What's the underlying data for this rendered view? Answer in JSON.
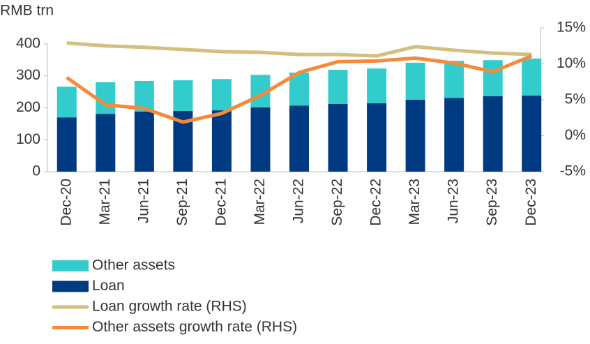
{
  "chart_data": {
    "type": "bar-line",
    "y_label": "RMB trn",
    "categories": [
      "Dec-20",
      "Mar-21",
      "Jun-21",
      "Sep-21",
      "Dec-21",
      "Mar-22",
      "Jun-22",
      "Sep-22",
      "Dec-22",
      "Mar-23",
      "Jun-23",
      "Sep-23",
      "Dec-23"
    ],
    "series": [
      {
        "name": "Other assets",
        "type": "bar",
        "color": "#33cccc",
        "values": [
          96,
          99,
          96,
          96,
          98,
          102,
          103,
          107,
          109,
          116,
          116,
          113,
          116
        ]
      },
      {
        "name": "Loan",
        "type": "bar",
        "color": "#003a80",
        "values": [
          170,
          181,
          188,
          190,
          192,
          201,
          207,
          212,
          214,
          225,
          231,
          236,
          238
        ]
      },
      {
        "name": "Loan growth rate (RHS)",
        "type": "line",
        "axis": "y2",
        "color": "#d4bf7e",
        "values": [
          12.9,
          12.5,
          12.3,
          12.0,
          11.7,
          11.6,
          11.3,
          11.3,
          11.1,
          12.4,
          11.9,
          11.5,
          11.3
        ]
      },
      {
        "name": "Other assets growth rate (RHS)",
        "type": "line",
        "axis": "y2",
        "color": "#f58a3a",
        "values": [
          8.1,
          4.3,
          3.8,
          1.9,
          3.1,
          5.6,
          8.8,
          10.3,
          10.4,
          10.8,
          10.1,
          8.9,
          11.1
        ]
      }
    ],
    "ylim": [
      0,
      450
    ],
    "yticks": [
      0,
      100,
      200,
      300,
      400
    ],
    "y2lim": [
      -5,
      15
    ],
    "y2ticks": [
      {
        "value": -5,
        "label": "-5%"
      },
      {
        "value": 0,
        "label": "0%"
      },
      {
        "value": 5,
        "label": "5%"
      },
      {
        "value": 10,
        "label": "10%"
      },
      {
        "value": 15,
        "label": "15%"
      }
    ]
  }
}
